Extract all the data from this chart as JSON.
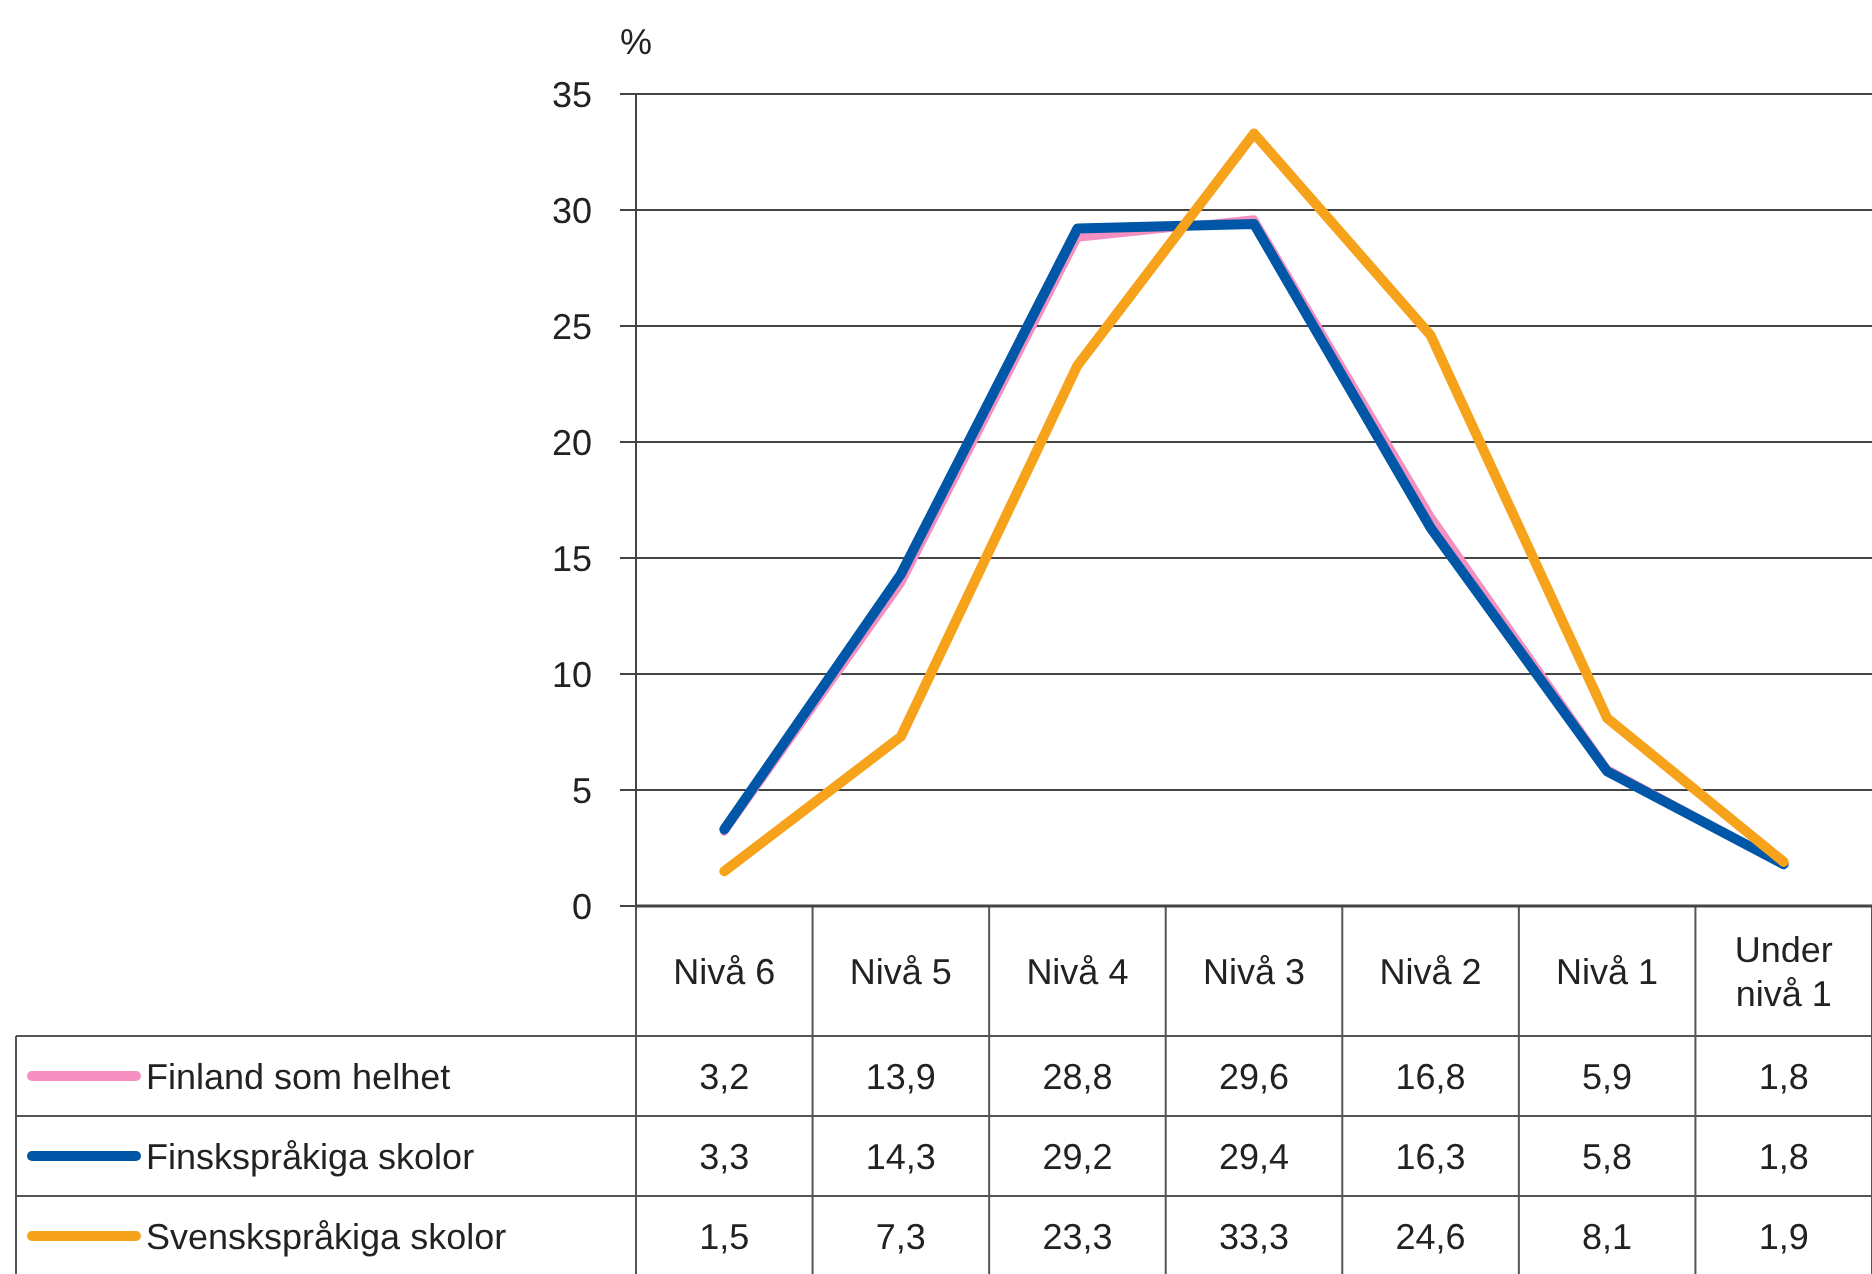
{
  "chart_data": {
    "type": "line",
    "ylabel": "%",
    "categories": [
      "Nivå 6",
      "Nivå 5",
      "Nivå 4",
      "Nivå 3",
      "Nivå 2",
      "Nivå 1",
      "Under nivå 1"
    ],
    "series": [
      {
        "name": "Finland som helhet",
        "color": "#f48fbf",
        "values": [
          3.2,
          13.9,
          28.8,
          29.6,
          16.8,
          5.9,
          1.8
        ],
        "value_labels": [
          "3,2",
          "13,9",
          "28,8",
          "29,6",
          "16,8",
          "5,9",
          "1,8"
        ]
      },
      {
        "name": "Finskspråkiga skolor",
        "color": "#0057a8",
        "values": [
          3.3,
          14.3,
          29.2,
          29.4,
          16.3,
          5.8,
          1.8
        ],
        "value_labels": [
          "3,3",
          "14,3",
          "29,2",
          "29,4",
          "16,3",
          "5,8",
          "1,8"
        ]
      },
      {
        "name": "Svenskspråkiga skolor",
        "color": "#f7a21b",
        "values": [
          1.5,
          7.3,
          23.3,
          33.3,
          24.6,
          8.1,
          1.9
        ],
        "value_labels": [
          "1,5",
          "7,3",
          "23,3",
          "33,3",
          "24,6",
          "8,1",
          "1,9"
        ]
      }
    ],
    "ylim": [
      0,
      35
    ],
    "yticks": [
      0,
      5,
      10,
      15,
      20,
      25,
      30,
      35
    ],
    "grid": "y",
    "legend": "bottom left",
    "marker": "none",
    "line_style": "solid"
  }
}
